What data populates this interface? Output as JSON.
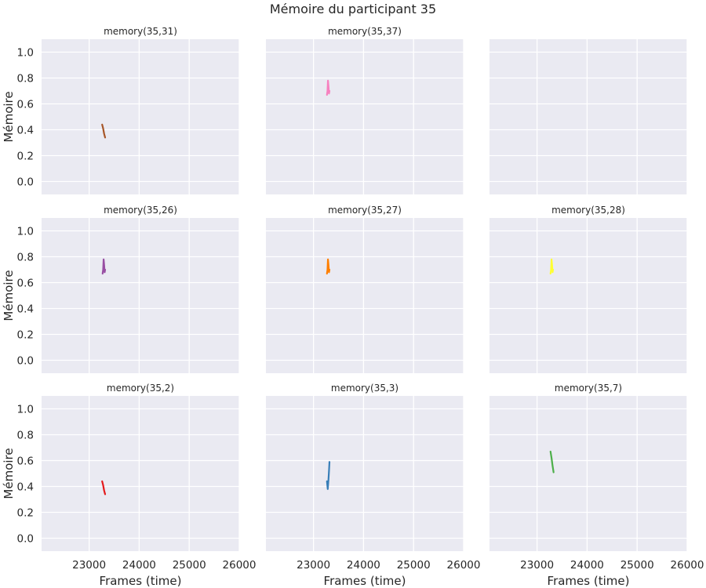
{
  "chart_data": {
    "type": "line",
    "title": "Mémoire du participant 35",
    "xlabel": "Frames (time)",
    "ylabel": "Mémoire",
    "xlim": [
      22050,
      26000
    ],
    "ylim": [
      -0.1,
      1.1
    ],
    "xticks": [
      23000,
      24000,
      25000,
      26000
    ],
    "yticks": [
      0.0,
      0.2,
      0.4,
      0.6,
      0.8,
      1.0
    ],
    "xtick_labels": [
      "23000",
      "24000",
      "25000",
      "26000"
    ],
    "ytick_labels": [
      "0.0",
      "0.2",
      "0.4",
      "0.6",
      "0.8",
      "1.0"
    ],
    "background": "#EAEAF2",
    "grid": true,
    "panels": [
      {
        "title": "memory(35,31)",
        "color": "#A65628",
        "x": [
          23260,
          23280,
          23300,
          23320
        ],
        "y": [
          0.44,
          0.41,
          0.37,
          0.34
        ]
      },
      {
        "title": "memory(35,37)",
        "color": "#F781BF",
        "x": [
          23270,
          23280,
          23290,
          23300,
          23310,
          23320
        ],
        "y": [
          0.67,
          0.7,
          0.78,
          0.74,
          0.68,
          0.7
        ]
      },
      {
        "title": "",
        "color": "#999999",
        "x": [],
        "y": []
      },
      {
        "title": "memory(35,26)",
        "color": "#984EA3",
        "x": [
          23270,
          23280,
          23290,
          23300,
          23310,
          23320
        ],
        "y": [
          0.67,
          0.7,
          0.78,
          0.74,
          0.68,
          0.7
        ]
      },
      {
        "title": "memory(35,27)",
        "color": "#FF7F00",
        "x": [
          23270,
          23280,
          23290,
          23300,
          23310,
          23320
        ],
        "y": [
          0.67,
          0.7,
          0.78,
          0.74,
          0.68,
          0.7
        ]
      },
      {
        "title": "memory(35,28)",
        "color": "#FFFF33",
        "x": [
          23270,
          23280,
          23290,
          23300,
          23310,
          23320
        ],
        "y": [
          0.67,
          0.7,
          0.78,
          0.74,
          0.68,
          0.7
        ]
      },
      {
        "title": "memory(35,2)",
        "color": "#E41A1C",
        "x": [
          23260,
          23280,
          23300,
          23320
        ],
        "y": [
          0.44,
          0.41,
          0.37,
          0.34
        ]
      },
      {
        "title": "memory(35,3)",
        "color": "#377EB8",
        "x": [
          23270,
          23285,
          23300,
          23310,
          23320
        ],
        "y": [
          0.44,
          0.38,
          0.45,
          0.52,
          0.59
        ]
      },
      {
        "title": "memory(35,7)",
        "color": "#4DAF4A",
        "x": [
          23270,
          23290,
          23310,
          23330
        ],
        "y": [
          0.67,
          0.62,
          0.56,
          0.51
        ]
      }
    ]
  }
}
